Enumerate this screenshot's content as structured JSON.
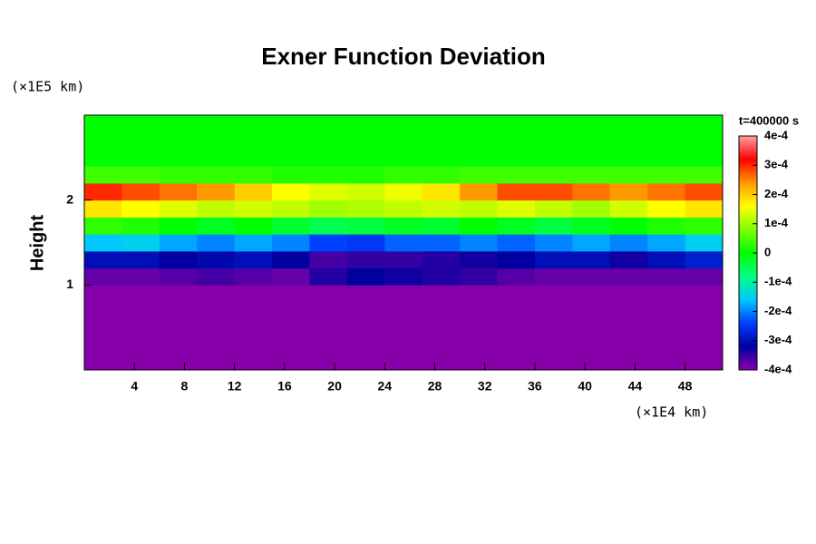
{
  "chart_data": {
    "type": "heatmap",
    "title": "Exner Function Deviation",
    "ylabel": "Height",
    "yunit": "(×1E5 km)",
    "xunit": "(×1E4 km)",
    "colorbar_title": "t=400000 s",
    "x": [
      1.5,
      4.5,
      7.5,
      10.5,
      13.5,
      16.5,
      19.5,
      22.5,
      25.5,
      28.5,
      31.5,
      34.5,
      37.5,
      40.5,
      43.5,
      46.5,
      49.5
    ],
    "y": [
      0.1,
      0.3,
      0.5,
      0.7,
      0.9,
      1.1,
      1.3,
      1.5,
      1.7,
      1.9,
      2.1,
      2.3,
      2.5,
      2.7,
      2.9
    ],
    "z": [
      [
        -0.0004,
        -0.0004,
        -0.0004,
        -0.0004,
        -0.0004,
        -0.0004,
        -0.0004,
        -0.0004,
        -0.0004,
        -0.0004,
        -0.0004,
        -0.0004,
        -0.0004,
        -0.0004,
        -0.0004,
        -0.0004,
        -0.0004
      ],
      [
        -0.0004,
        -0.0004,
        -0.0004,
        -0.0004,
        -0.0004,
        -0.0004,
        -0.0004,
        -0.0004,
        -0.0004,
        -0.0004,
        -0.0004,
        -0.0004,
        -0.0004,
        -0.0004,
        -0.0004,
        -0.0004,
        -0.0004
      ],
      [
        -0.0004,
        -0.0004,
        -0.0004,
        -0.0004,
        -0.0004,
        -0.0004,
        -0.0004,
        -0.0004,
        -0.0004,
        -0.0004,
        -0.0004,
        -0.0004,
        -0.0004,
        -0.0004,
        -0.0004,
        -0.0004,
        -0.0004
      ],
      [
        -0.0004,
        -0.0004,
        -0.0004,
        -0.0004,
        -0.0004,
        -0.0004,
        -0.0004,
        -0.0004,
        -0.0004,
        -0.0004,
        -0.0004,
        -0.0004,
        -0.0004,
        -0.0004,
        -0.0004,
        -0.0004,
        -0.0004
      ],
      [
        -0.0004,
        -0.0004,
        -0.0004,
        -0.0004,
        -0.0004,
        -0.0004,
        -0.0004,
        -0.0004,
        -0.0004,
        -0.0004,
        -0.0004,
        -0.0004,
        -0.0004,
        -0.0004,
        -0.0004,
        -0.0004,
        -0.0004
      ],
      [
        -0.00038,
        -0.00038,
        -0.00037,
        -0.00036,
        -0.00037,
        -0.00038,
        -0.00034,
        -0.00032,
        -0.00033,
        -0.00034,
        -0.00035,
        -0.00037,
        -0.00038,
        -0.00038,
        -0.00038,
        -0.00038,
        -0.00038
      ],
      [
        -0.0003,
        -0.0003,
        -0.00032,
        -0.00031,
        -0.0003,
        -0.00032,
        -0.00036,
        -0.00035,
        -0.00035,
        -0.00034,
        -0.00033,
        -0.00032,
        -0.0003,
        -0.0003,
        -0.00033,
        -0.0003,
        -0.00028
      ],
      [
        -0.00016,
        -0.00015,
        -0.00018,
        -0.0002,
        -0.00018,
        -0.0002,
        -0.00024,
        -0.00025,
        -0.00022,
        -0.00022,
        -0.0002,
        -0.00022,
        -0.0002,
        -0.00018,
        -0.0002,
        -0.00018,
        -0.00015
      ],
      [
        3e-05,
        2e-05,
        0,
        -2e-05,
        0,
        -3e-05,
        -5e-05,
        -4e-05,
        -2e-05,
        -3e-05,
        0,
        -2e-05,
        -4e-05,
        -2e-05,
        0,
        2e-05,
        3e-05
      ],
      [
        0.00018,
        0.00016,
        0.00014,
        0.00012,
        0.00013,
        0.00012,
        0.0001,
        0.00011,
        0.00012,
        0.00013,
        0.00012,
        0.00014,
        0.00012,
        0.0001,
        0.00013,
        0.00016,
        0.00018
      ],
      [
        0.0003,
        0.00028,
        0.00026,
        0.00024,
        0.0002,
        0.00016,
        0.00014,
        0.00013,
        0.00015,
        0.00018,
        0.00024,
        0.00028,
        0.00028,
        0.00026,
        0.00024,
        0.00026,
        0.00028
      ],
      [
        4e-05,
        4e-05,
        3e-05,
        3e-05,
        3e-05,
        2e-05,
        2e-05,
        2e-05,
        3e-05,
        3e-05,
        4e-05,
        4e-05,
        4e-05,
        4e-05,
        4e-05,
        4e-05,
        4e-05
      ],
      [
        0,
        0,
        0,
        0,
        0,
        0,
        0,
        0,
        0,
        0,
        0,
        0,
        0,
        0,
        0,
        0,
        0
      ],
      [
        0,
        0,
        0,
        0,
        0,
        0,
        0,
        0,
        0,
        0,
        0,
        0,
        0,
        0,
        0,
        0,
        0
      ],
      [
        0,
        0,
        0,
        0,
        0,
        0,
        0,
        0,
        0,
        0,
        0,
        0,
        0,
        0,
        0,
        0,
        0
      ]
    ],
    "xlim": [
      0,
      51
    ],
    "ylim": [
      0,
      3
    ],
    "xticks": [
      4,
      8,
      12,
      16,
      20,
      24,
      28,
      32,
      36,
      40,
      44,
      48
    ],
    "yticks": [
      1,
      2
    ],
    "clim": [
      -0.0004,
      0.0004
    ],
    "colorscale": [
      "#8800aa",
      "#0000a0",
      "#0040ff",
      "#00c8ff",
      "#00ff80",
      "#00ff00",
      "#80ff00",
      "#ffff00",
      "#ff9900",
      "#ff0000",
      "#ffa0a0"
    ],
    "cticks": [
      {
        "value": 0.0004,
        "label": "4e-4"
      },
      {
        "value": 0.0003,
        "label": "3e-4"
      },
      {
        "value": 0.0002,
        "label": "2e-4"
      },
      {
        "value": 0.0001,
        "label": "1e-4"
      },
      0,
      {
        "value": -0.0001,
        "label": "-1e-4"
      },
      {
        "value": -0.0002,
        "label": "-2e-4"
      },
      {
        "value": -0.0003,
        "label": "-3e-4"
      },
      {
        "value": -0.0004,
        "label": "-4e-4"
      }
    ]
  }
}
